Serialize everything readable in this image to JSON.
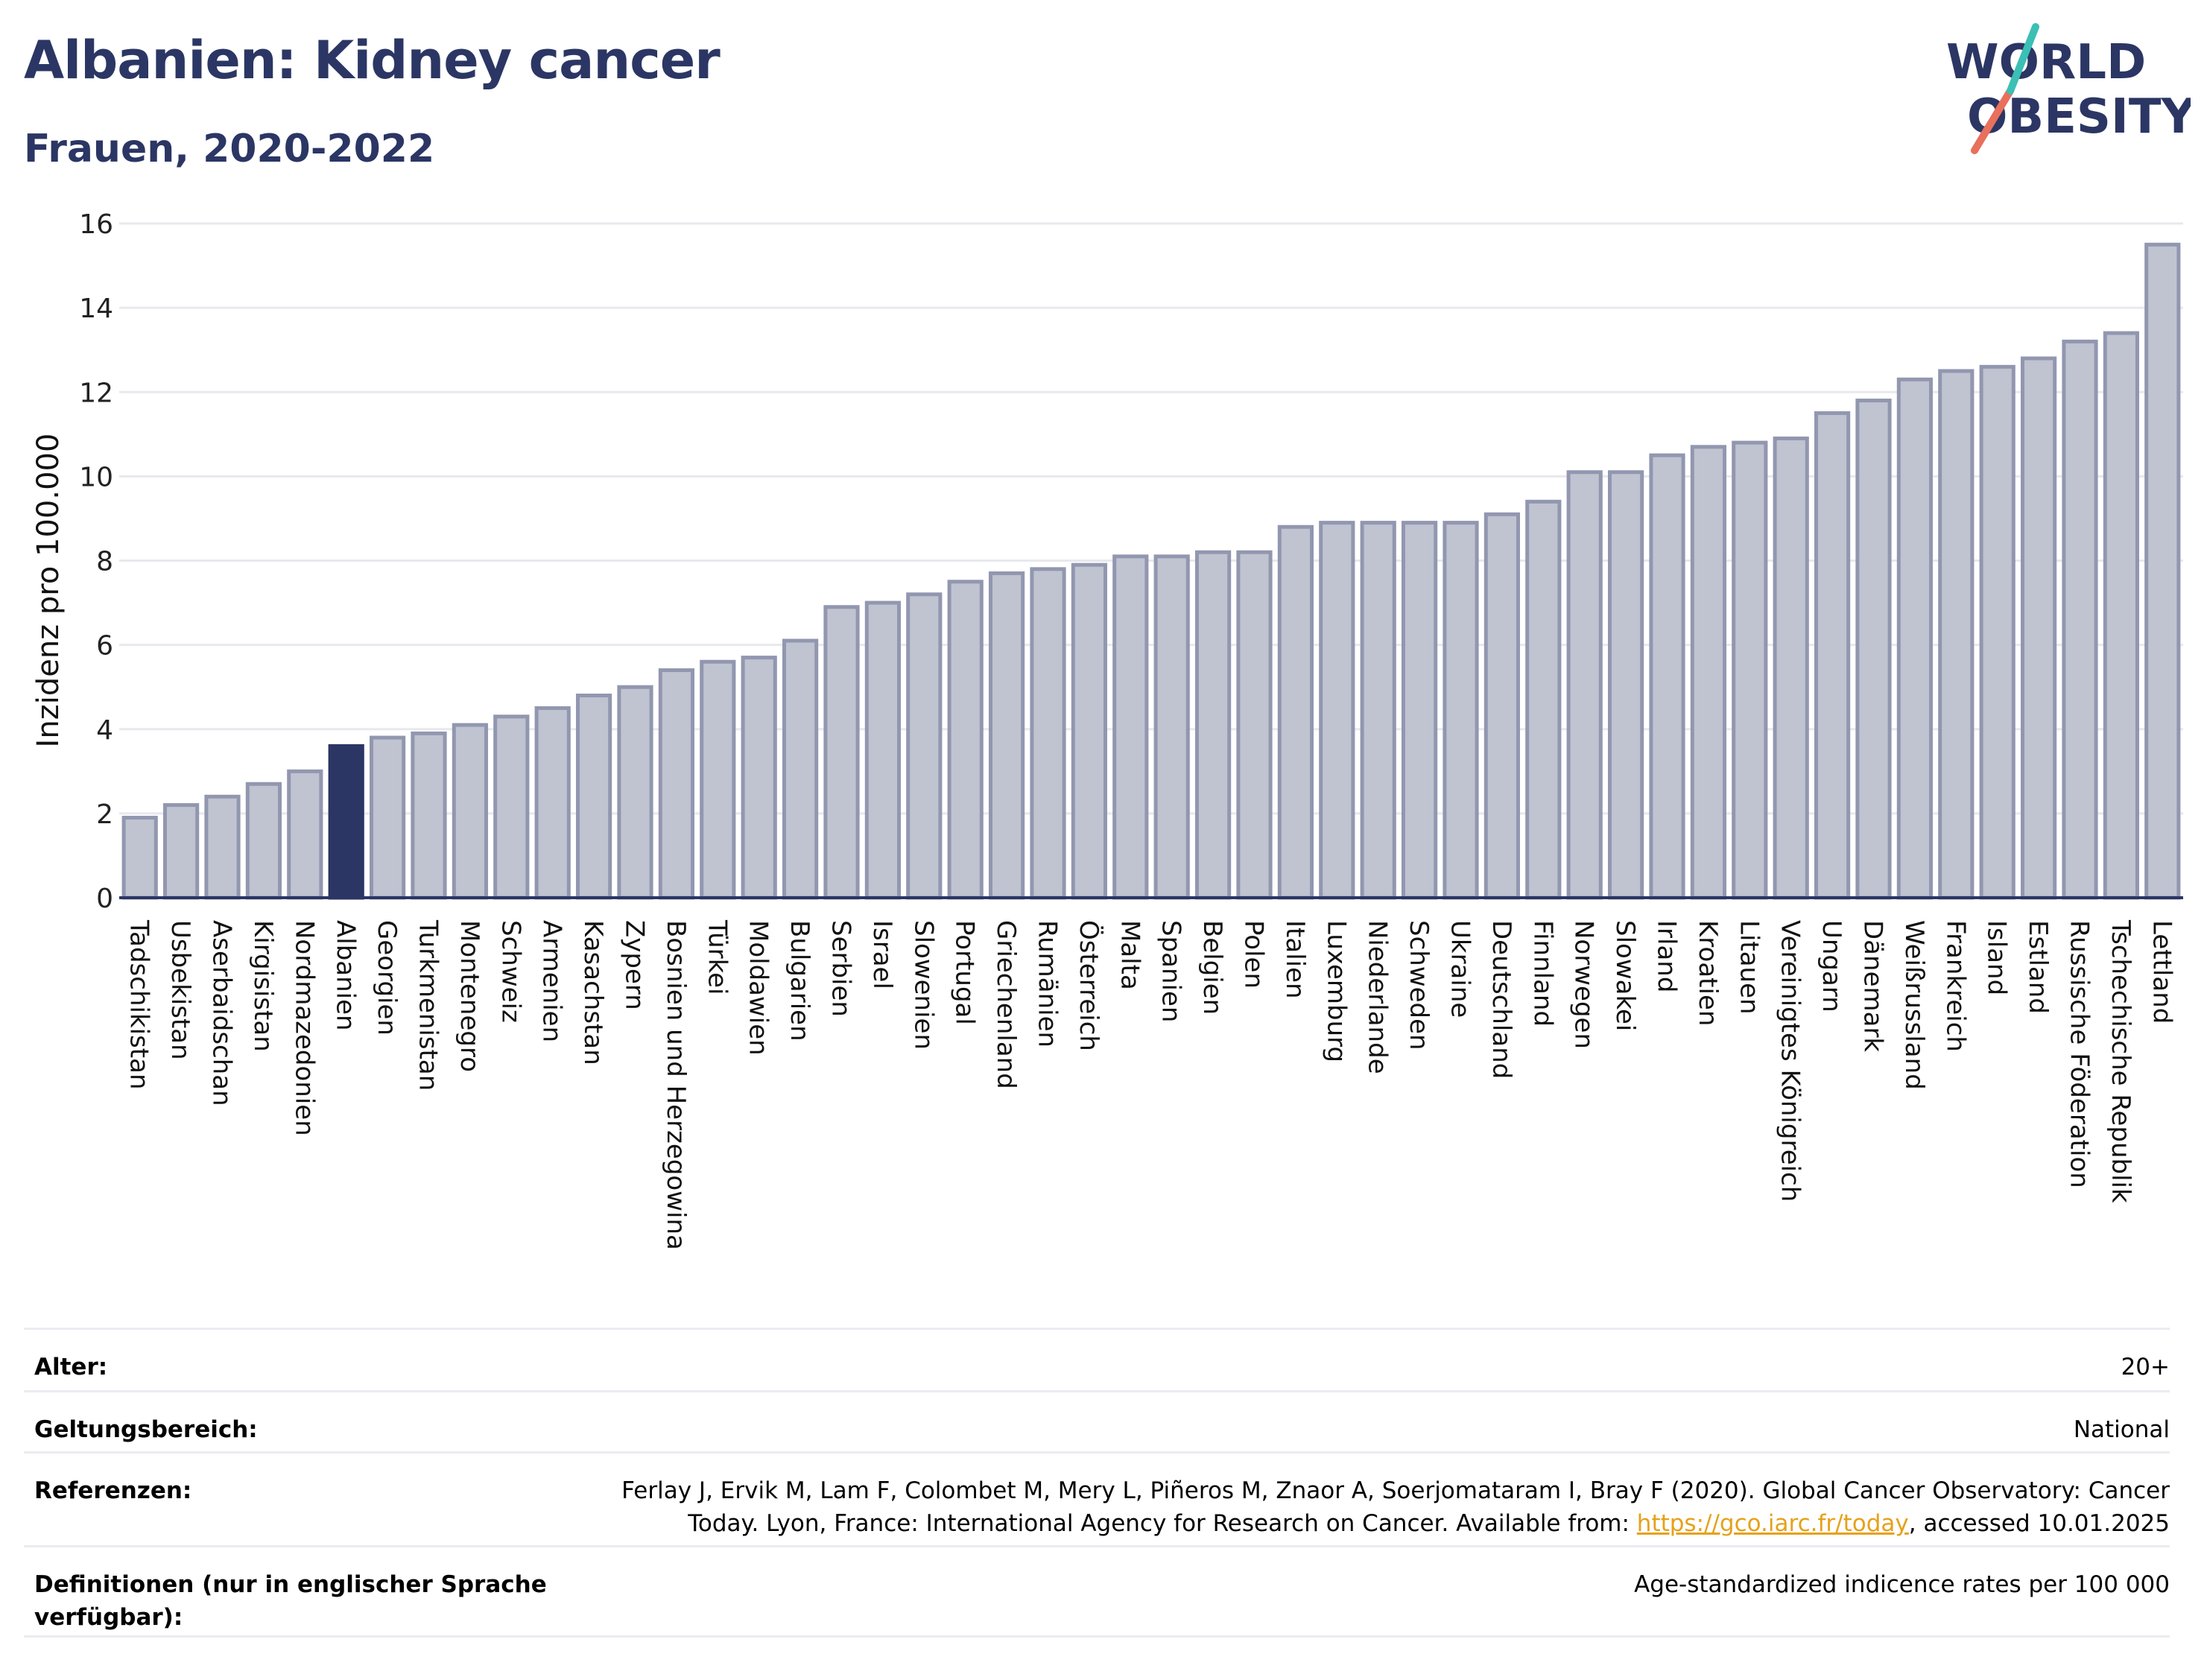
{
  "header": {
    "title": "Albanien: Kidney cancer",
    "subtitle": "Frauen, 2020-2022"
  },
  "logo": {
    "line1": "WORLD",
    "line2": "OBESITY"
  },
  "chart_data": {
    "type": "bar",
    "ylabel": "Inzidenz pro 100.000",
    "ylim": [
      0,
      16
    ],
    "yticks": [
      0,
      2,
      4,
      6,
      8,
      10,
      12,
      14,
      16
    ],
    "grid": true,
    "highlight": "Albanien",
    "colors": {
      "bar": "#c0c3d0",
      "bar_border": "#9297b0",
      "highlight": "#2b3664",
      "grid": "#e8e8ee"
    },
    "categories": [
      "Tadschikistan",
      "Usbekistan",
      "Aserbaidschan",
      "Kirgisistan",
      "Nordmazedonien",
      "Albanien",
      "Georgien",
      "Turkmenistan",
      "Montenegro",
      "Schweiz",
      "Armenien",
      "Kasachstan",
      "Zypern",
      "Bosnien und Herzegowina",
      "Türkei",
      "Moldawien",
      "Bulgarien",
      "Serbien",
      "Israel",
      "Slowenien",
      "Portugal",
      "Griechenland",
      "Rumänien",
      "Österreich",
      "Malta",
      "Spanien",
      "Belgien",
      "Polen",
      "Italien",
      "Luxemburg",
      "Niederlande",
      "Schweden",
      "Ukraine",
      "Deutschland",
      "Finnland",
      "Norwegen",
      "Slowakei",
      "Irland",
      "Kroatien",
      "Litauen",
      "Vereinigtes Königreich",
      "Ungarn",
      "Dänemark",
      "Weißrussland",
      "Frankreich",
      "Island",
      "Estland",
      "Russische Föderation",
      "Tschechische Republik",
      "Lettland"
    ],
    "values": [
      1.9,
      2.2,
      2.4,
      2.7,
      3.0,
      3.6,
      3.8,
      3.9,
      4.1,
      4.3,
      4.5,
      4.8,
      5.0,
      5.4,
      5.6,
      5.7,
      6.1,
      6.9,
      7.0,
      7.2,
      7.5,
      7.7,
      7.8,
      7.9,
      8.1,
      8.1,
      8.2,
      8.2,
      8.8,
      8.9,
      8.9,
      8.9,
      8.9,
      9.1,
      9.4,
      10.1,
      10.1,
      10.5,
      10.7,
      10.8,
      10.9,
      11.5,
      11.8,
      12.3,
      12.5,
      12.6,
      12.8,
      13.2,
      13.4,
      15.5
    ]
  },
  "info": {
    "age_label": "Alter:",
    "age_value": "20+",
    "scope_label": "Geltungsbereich:",
    "scope_value": "National",
    "refs_label": "Referenzen:",
    "refs_line1": "Ferlay J, Ervik M, Lam F, Colombet M, Mery L, Piñeros M, Znaor A, Soerjomataram I, Bray F (2020). Global Cancer Observatory: Cancer",
    "refs_line2_pre": "Today. Lyon, France: International Agency for Research on Cancer. Available from: ",
    "refs_link": "https://gco.iarc.fr/today",
    "refs_line2_post": ", accessed 10.01.2025",
    "defs_label": "Definitionen (nur in englischer Sprache verfügbar):",
    "defs_value": "Age-standardized indicence rates per 100 000"
  }
}
